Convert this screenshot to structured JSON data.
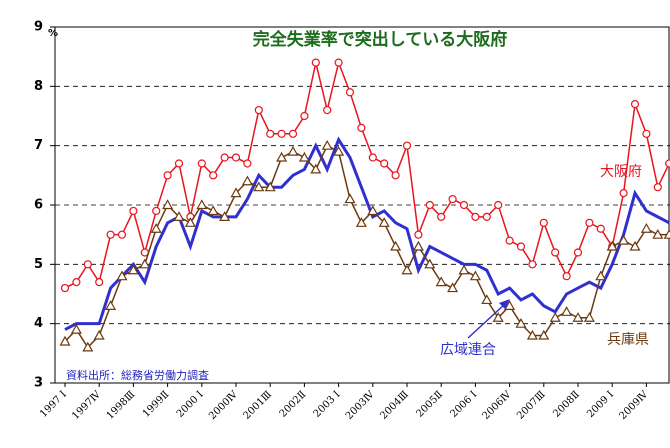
{
  "chart_data": {
    "type": "line",
    "title": "完全失業率で突出している大阪府",
    "y_label": "%",
    "note": "資料出所：総務省労働力調査",
    "categories": [
      "1997 I",
      null,
      null,
      "1997Ⅳ",
      null,
      null,
      "1998Ⅲ",
      null,
      null,
      "1999Ⅱ",
      null,
      null,
      "2000 I",
      null,
      null,
      "2000Ⅳ",
      null,
      null,
      "2001Ⅲ",
      null,
      null,
      "2002Ⅱ",
      null,
      null,
      "2003 I",
      null,
      null,
      "2003Ⅳ",
      null,
      null,
      "2004Ⅲ",
      null,
      null,
      "2005Ⅱ",
      null,
      null,
      "2006 I",
      null,
      null,
      "2006Ⅳ",
      null,
      null,
      "2007Ⅲ",
      null,
      null,
      "2008Ⅱ",
      null,
      null,
      "2009 I",
      null,
      null,
      "2009Ⅳ",
      null,
      null
    ],
    "series": [
      {
        "name": "大阪府",
        "color": "#e8141e",
        "marker": "circle",
        "values": [
          4.6,
          4.7,
          5.0,
          4.7,
          5.5,
          5.5,
          5.9,
          5.2,
          5.9,
          6.5,
          6.7,
          5.8,
          6.7,
          6.5,
          6.8,
          6.8,
          6.7,
          7.6,
          7.2,
          7.2,
          7.2,
          7.5,
          8.4,
          7.6,
          8.4,
          7.9,
          7.3,
          6.8,
          6.7,
          6.5,
          7.0,
          5.5,
          6.0,
          5.8,
          6.1,
          6.0,
          5.8,
          5.8,
          6.0,
          5.4,
          5.3,
          5.0,
          5.7,
          5.2,
          4.8,
          5.2,
          5.7,
          5.6,
          5.3,
          6.2,
          7.7,
          7.2,
          6.3,
          6.7
        ]
      },
      {
        "name": "広域連合",
        "color": "#3030d0",
        "marker": "none",
        "values": [
          3.9,
          4.0,
          4.0,
          4.0,
          4.6,
          4.8,
          5.0,
          4.7,
          5.3,
          5.7,
          5.8,
          5.3,
          5.9,
          5.8,
          5.8,
          5.8,
          6.1,
          6.5,
          6.3,
          6.3,
          6.5,
          6.6,
          7.0,
          6.6,
          7.1,
          6.8,
          6.3,
          5.8,
          5.9,
          5.7,
          5.6,
          4.9,
          5.3,
          5.2,
          5.1,
          5.0,
          5.0,
          4.9,
          4.5,
          4.6,
          4.4,
          4.5,
          4.3,
          4.2,
          4.5,
          4.6,
          4.7,
          4.6,
          5.0,
          5.5,
          6.2,
          5.9,
          5.8,
          5.7
        ]
      },
      {
        "name": "兵庫県",
        "color": "#6b3a10",
        "marker": "triangle",
        "values": [
          3.7,
          3.9,
          3.6,
          3.8,
          4.3,
          4.8,
          4.9,
          5.0,
          5.6,
          6.0,
          5.8,
          5.7,
          6.0,
          5.9,
          5.8,
          6.2,
          6.4,
          6.3,
          6.3,
          6.8,
          6.9,
          6.8,
          6.6,
          7.0,
          6.9,
          6.1,
          5.7,
          5.9,
          5.7,
          5.3,
          4.9,
          5.3,
          5.0,
          4.7,
          4.6,
          4.9,
          4.8,
          4.4,
          4.1,
          4.3,
          4.0,
          3.8,
          3.8,
          4.1,
          4.2,
          4.1,
          4.1,
          4.8,
          5.3,
          5.4,
          5.3,
          5.6,
          5.5,
          5.5
        ]
      }
    ],
    "ylim": [
      3,
      9
    ],
    "yticks": [
      3,
      4,
      5,
      6,
      7,
      8,
      9
    ],
    "grid": true
  }
}
